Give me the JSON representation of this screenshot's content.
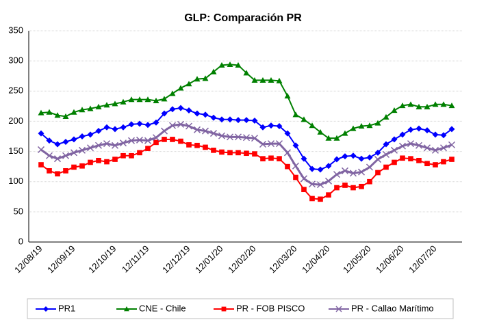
{
  "chart_data": {
    "type": "line",
    "title": "GLP: Comparación PR",
    "categories": [
      "12/08/19",
      null,
      null,
      null,
      "12/09/19",
      null,
      null,
      null,
      null,
      "12/10/19",
      null,
      null,
      null,
      "12/11/19",
      null,
      null,
      null,
      null,
      "12/12/19",
      null,
      null,
      null,
      "12/01/20",
      null,
      null,
      null,
      "12/02/20",
      null,
      null,
      null,
      null,
      "12/03/20",
      null,
      null,
      null,
      "12/04/20",
      null,
      null,
      null,
      null,
      "12/05/20",
      null,
      null,
      null,
      "12/06/20",
      null,
      null,
      null,
      "12/07/20",
      null,
      null
    ],
    "series": [
      {
        "name": "PR1",
        "color": "#0000ff",
        "marker": "diamond",
        "values": [
          180,
          168,
          162,
          166,
          170,
          175,
          178,
          184,
          190,
          187,
          190,
          195,
          196,
          194,
          198,
          213,
          220,
          222,
          218,
          213,
          211,
          206,
          203,
          203,
          202,
          202,
          201,
          190,
          193,
          192,
          180,
          160,
          138,
          121,
          120,
          126,
          137,
          142,
          143,
          138,
          140,
          148,
          162,
          170,
          178,
          186,
          188,
          185,
          178,
          177,
          187
        ]
      },
      {
        "name": "CNE - Chile",
        "color": "#008000",
        "marker": "triangle",
        "values": [
          214,
          215,
          210,
          208,
          215,
          219,
          221,
          224,
          227,
          229,
          232,
          236,
          236,
          236,
          234,
          237,
          246,
          255,
          262,
          270,
          271,
          282,
          293,
          294,
          293,
          280,
          268,
          268,
          268,
          267,
          242,
          211,
          203,
          193,
          182,
          172,
          172,
          180,
          188,
          192,
          193,
          197,
          207,
          218,
          226,
          228,
          224,
          224,
          228,
          228,
          226
        ]
      },
      {
        "name": "PR - FOB PISCO",
        "color": "#ff0000",
        "marker": "square",
        "values": [
          128,
          118,
          113,
          118,
          124,
          126,
          132,
          135,
          133,
          137,
          143,
          143,
          148,
          155,
          165,
          170,
          170,
          167,
          161,
          160,
          157,
          152,
          149,
          148,
          148,
          147,
          146,
          138,
          139,
          138,
          125,
          107,
          87,
          72,
          71,
          78,
          90,
          94,
          90,
          92,
          100,
          115,
          124,
          132,
          139,
          138,
          135,
          130,
          128,
          133,
          137
        ]
      },
      {
        "name": "PR - Callao Marítimo",
        "color": "#8064a2",
        "marker": "x",
        "values": [
          153,
          143,
          138,
          143,
          148,
          152,
          156,
          160,
          163,
          160,
          164,
          168,
          169,
          168,
          173,
          184,
          193,
          195,
          192,
          186,
          184,
          180,
          176,
          174,
          174,
          173,
          172,
          162,
          163,
          163,
          148,
          126,
          105,
          96,
          95,
          101,
          112,
          118,
          114,
          116,
          124,
          137,
          145,
          152,
          159,
          163,
          160,
          156,
          152,
          156,
          161
        ]
      }
    ],
    "ylim": [
      0,
      350
    ],
    "yticks": [
      0,
      50,
      100,
      150,
      200,
      250,
      300,
      350
    ],
    "grid": true,
    "legend": "bottom"
  }
}
